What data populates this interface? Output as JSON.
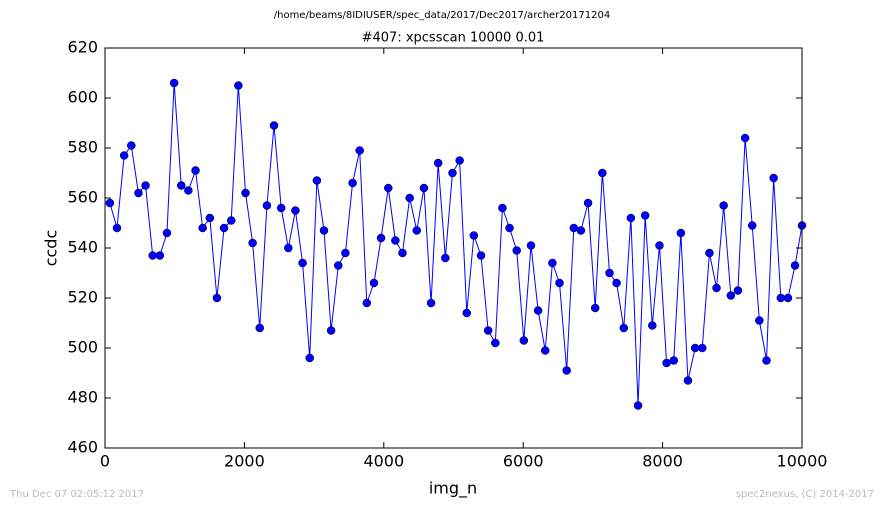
{
  "chart_data": {
    "type": "line",
    "suptitle": "/home/beams/8IDIUSER/spec_data/2017/Dec2017/archer20171204",
    "title": "#407: xpcsscan 10000 0.01",
    "xlabel": "img_n",
    "ylabel": "ccdc",
    "footer_left": "Thu Dec 07 02:05:12 2017",
    "footer_right": "spec2nexus, (C) 2014-2017",
    "x": [
      70,
      172,
      275,
      377,
      480,
      582,
      684,
      787,
      889,
      992,
      1094,
      1196,
      1299,
      1401,
      1504,
      1606,
      1708,
      1811,
      1913,
      2016,
      2118,
      2220,
      2323,
      2425,
      2528,
      2630,
      2732,
      2835,
      2937,
      3040,
      3142,
      3244,
      3347,
      3449,
      3552,
      3654,
      3756,
      3859,
      3961,
      4064,
      4166,
      4268,
      4371,
      4473,
      4576,
      4678,
      4780,
      4883,
      4985,
      5088,
      5190,
      5292,
      5395,
      5497,
      5600,
      5702,
      5804,
      5907,
      6009,
      6112,
      6214,
      6316,
      6419,
      6521,
      6624,
      6726,
      6828,
      6931,
      7033,
      7136,
      7238,
      7340,
      7443,
      7545,
      7648,
      7750,
      7852,
      7955,
      8057,
      8160,
      8262,
      8364,
      8467,
      8569,
      8672,
      8774,
      8876,
      8979,
      9081,
      9184,
      9286,
      9388,
      9491,
      9593,
      9696,
      9798,
      9900,
      10000
    ],
    "series": [
      {
        "color": "#0000ff",
        "values": [
          558,
          548,
          577,
          581,
          562,
          565,
          537,
          537,
          546,
          606,
          565,
          563,
          571,
          548,
          552,
          520,
          548,
          551,
          605,
          562,
          542,
          508,
          557,
          589,
          556,
          540,
          555,
          534,
          496,
          567,
          547,
          507,
          533,
          538,
          566,
          579,
          518,
          526,
          544,
          564,
          543,
          538,
          560,
          547,
          564,
          518,
          574,
          536,
          570,
          575,
          514,
          545,
          537,
          507,
          502,
          556,
          548,
          539,
          503,
          541,
          515,
          499,
          534,
          526,
          491,
          548,
          547,
          558,
          516,
          570,
          530,
          526,
          508,
          552,
          477,
          553,
          509,
          541,
          494,
          495,
          546,
          487,
          500,
          500,
          538,
          524,
          557,
          521,
          523,
          584,
          549,
          511,
          495,
          568,
          520,
          520,
          533,
          549
        ]
      }
    ],
    "xlim": [
      0,
      10000
    ],
    "ylim": [
      460,
      620
    ],
    "xticks": [
      0,
      2000,
      4000,
      6000,
      8000,
      10000
    ],
    "yticks": [
      460,
      480,
      500,
      520,
      540,
      560,
      580,
      600,
      620
    ]
  }
}
